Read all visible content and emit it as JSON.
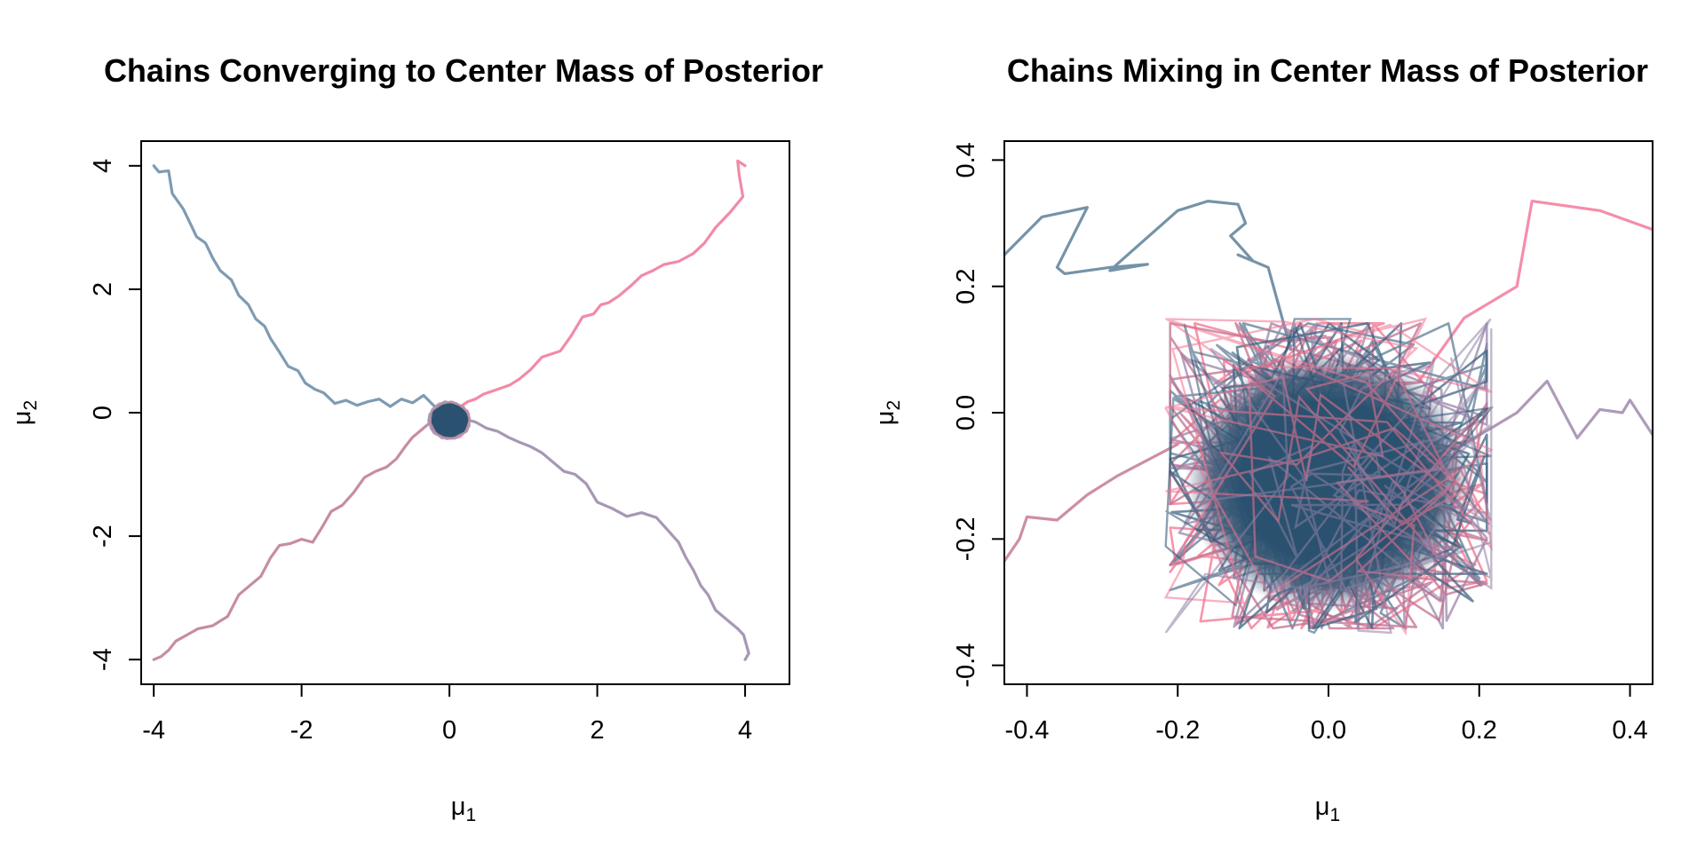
{
  "chart_data": [
    {
      "type": "line",
      "title": "Chains Converging to Center Mass of Posterior",
      "xlabel": "μ",
      "xlabel_sub": "1",
      "ylabel": "μ",
      "ylabel_sub": "2",
      "xlim": [
        -4.17,
        4.6
      ],
      "ylim": [
        -4.4,
        4.4
      ],
      "xticks": [
        -4,
        -2,
        0,
        2,
        4
      ],
      "xtick_labels": [
        "-4",
        "-2",
        "0",
        "2",
        "4"
      ],
      "yticks": [
        -4,
        -2,
        0,
        2,
        4
      ],
      "ytick_labels": [
        "-4",
        "-2",
        "0",
        "2",
        "4"
      ],
      "grid": false,
      "center_blob": {
        "x": 0.0,
        "y": -0.12,
        "rx": 0.27,
        "ry": 0.3,
        "color": "#2a5270"
      },
      "series": [
        {
          "color": "#7e9bb2",
          "x": [
            -4.0,
            -3.93,
            -3.8,
            -3.75,
            -3.6,
            -3.5,
            -3.42,
            -3.3,
            -3.2,
            -3.1,
            -2.95,
            -2.85,
            -2.72,
            -2.62,
            -2.5,
            -2.42,
            -2.3,
            -2.18,
            -2.05,
            -1.95,
            -1.82,
            -1.7,
            -1.55,
            -1.4,
            -1.25,
            -1.1,
            -0.95,
            -0.8,
            -0.65,
            -0.5,
            -0.35,
            -0.2,
            -0.1
          ],
          "y": [
            4.0,
            3.9,
            3.92,
            3.55,
            3.3,
            3.05,
            2.85,
            2.75,
            2.5,
            2.3,
            2.15,
            1.9,
            1.75,
            1.52,
            1.4,
            1.2,
            0.98,
            0.75,
            0.68,
            0.48,
            0.38,
            0.32,
            0.15,
            0.2,
            0.12,
            0.18,
            0.22,
            0.1,
            0.22,
            0.16,
            0.28,
            0.1,
            0.05
          ]
        },
        {
          "color": "#f28aa7",
          "x": [
            4.0,
            3.9,
            3.92,
            3.97,
            3.8,
            3.6,
            3.45,
            3.3,
            3.1,
            2.9,
            2.75,
            2.6,
            2.45,
            2.3,
            2.15,
            2.05,
            1.95,
            1.8,
            1.65,
            1.5,
            1.38,
            1.25,
            1.1,
            0.95,
            0.82,
            0.7,
            0.58,
            0.46,
            0.35,
            0.25,
            0.15
          ],
          "y": [
            4.0,
            4.08,
            3.85,
            3.5,
            3.25,
            3.0,
            2.75,
            2.58,
            2.45,
            2.4,
            2.3,
            2.22,
            2.05,
            1.9,
            1.78,
            1.75,
            1.6,
            1.55,
            1.25,
            1.0,
            0.95,
            0.9,
            0.7,
            0.55,
            0.45,
            0.4,
            0.35,
            0.3,
            0.22,
            0.18,
            0.1
          ]
        },
        {
          "color": "#a797b4",
          "x": [
            4.0,
            4.05,
            3.98,
            3.9,
            3.75,
            3.6,
            3.5,
            3.4,
            3.3,
            3.2,
            3.1,
            2.95,
            2.8,
            2.6,
            2.4,
            2.2,
            2.0,
            1.85,
            1.7,
            1.55,
            1.4,
            1.25,
            1.1,
            0.95,
            0.8,
            0.65,
            0.5,
            0.35,
            0.2,
            0.1
          ],
          "y": [
            -4.0,
            -3.9,
            -3.6,
            -3.5,
            -3.35,
            -3.2,
            -2.95,
            -2.8,
            -2.55,
            -2.35,
            -2.1,
            -1.9,
            -1.7,
            -1.62,
            -1.68,
            -1.55,
            -1.45,
            -1.15,
            -1.0,
            -0.95,
            -0.8,
            -0.65,
            -0.55,
            -0.48,
            -0.4,
            -0.3,
            -0.25,
            -0.15,
            -0.1,
            -0.05
          ]
        },
        {
          "color": "#c78ca3",
          "x": [
            -4.0,
            -3.9,
            -3.8,
            -3.7,
            -3.55,
            -3.4,
            -3.2,
            -3.0,
            -2.85,
            -2.7,
            -2.55,
            -2.42,
            -2.3,
            -2.15,
            -2.0,
            -1.85,
            -1.72,
            -1.6,
            -1.45,
            -1.3,
            -1.15,
            -1.0,
            -0.85,
            -0.72,
            -0.6,
            -0.5,
            -0.4,
            -0.3,
            -0.2,
            -0.1
          ],
          "y": [
            -4.0,
            -3.95,
            -3.85,
            -3.7,
            -3.6,
            -3.5,
            -3.45,
            -3.3,
            -2.95,
            -2.8,
            -2.65,
            -2.35,
            -2.15,
            -2.12,
            -2.05,
            -2.1,
            -1.85,
            -1.6,
            -1.5,
            -1.3,
            -1.05,
            -0.95,
            -0.88,
            -0.75,
            -0.55,
            -0.4,
            -0.3,
            -0.2,
            -0.1,
            -0.05
          ]
        }
      ]
    },
    {
      "type": "line",
      "title": "Chains Mixing in Center Mass of Posterior",
      "xlabel": "μ",
      "xlabel_sub": "1",
      "ylabel": "μ",
      "ylabel_sub": "2",
      "xlim": [
        -0.43,
        0.43
      ],
      "ylim": [
        -0.43,
        0.43
      ],
      "xticks": [
        -0.4,
        -0.2,
        0.0,
        0.2,
        0.4
      ],
      "xtick_labels": [
        "-0.4",
        "-0.2",
        "0.0",
        "0.2",
        "0.4"
      ],
      "yticks": [
        -0.4,
        -0.2,
        0.0,
        0.2,
        0.4
      ],
      "ytick_labels": [
        "-0.4",
        "-0.2",
        "0.0",
        "0.2",
        "0.4"
      ],
      "grid": false,
      "cloud": {
        "cx": 0.0,
        "cy": -0.1,
        "rx": 0.2,
        "ry": 0.23,
        "core_color": "#2a5270"
      },
      "series": [
        {
          "color": "#5d8099",
          "x": [
            -0.43,
            -0.38,
            -0.32,
            -0.36,
            -0.35,
            -0.29,
            -0.24,
            -0.29,
            -0.2,
            -0.16,
            -0.12,
            -0.11,
            -0.13,
            -0.1,
            -0.12,
            -0.08,
            -0.05
          ],
          "y": [
            0.25,
            0.31,
            0.325,
            0.23,
            0.22,
            0.23,
            0.235,
            0.225,
            0.32,
            0.335,
            0.33,
            0.3,
            0.28,
            0.24,
            0.25,
            0.23,
            0.1
          ]
        },
        {
          "color": "#f27a9b",
          "x": [
            0.43,
            0.36,
            0.27,
            0.25,
            0.18,
            0.12
          ],
          "y": [
            0.29,
            0.32,
            0.335,
            0.2,
            0.15,
            0.05
          ]
        },
        {
          "color": "#a08aab",
          "x": [
            0.43,
            0.4,
            0.39,
            0.36,
            0.33,
            0.29,
            0.25,
            0.18
          ],
          "y": [
            -0.035,
            0.02,
            0.0,
            0.005,
            -0.04,
            0.05,
            0.0,
            -0.05
          ]
        },
        {
          "color": "#c47a97",
          "x": [
            -0.43,
            -0.41,
            -0.4,
            -0.36,
            -0.32,
            -0.28,
            -0.2
          ],
          "y": [
            -0.235,
            -0.2,
            -0.165,
            -0.17,
            -0.13,
            -0.1,
            -0.05
          ]
        }
      ]
    }
  ]
}
